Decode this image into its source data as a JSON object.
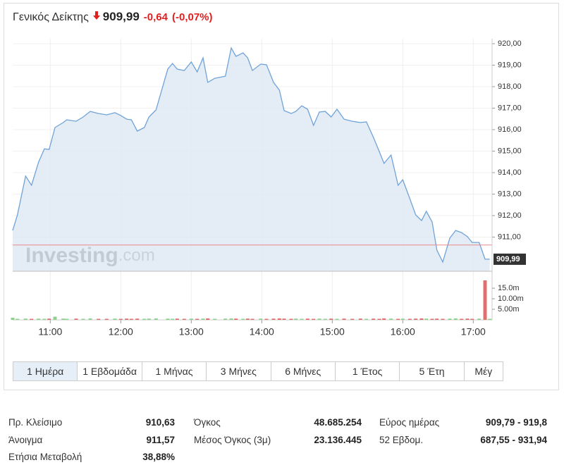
{
  "header": {
    "name": "Γενικός Δείκτης",
    "price": "909,99",
    "change": "-0,64",
    "change_pct": "(-0,07%)"
  },
  "chart_data": {
    "type": "line",
    "x": [
      "10:28",
      "10:32",
      "10:39",
      "10:44",
      "10:50",
      "10:55",
      "10:59",
      "11:04",
      "11:11",
      "11:14",
      "11:22",
      "11:28",
      "11:34",
      "11:41",
      "11:48",
      "11:55",
      "12:00",
      "12:05",
      "12:09",
      "12:14",
      "12:20",
      "12:24",
      "12:30",
      "12:40",
      "12:44",
      "12:48",
      "12:54",
      "13:00",
      "13:05",
      "13:10",
      "13:14",
      "13:20",
      "13:29",
      "13:34",
      "13:38",
      "13:44",
      "13:48",
      "13:52",
      "13:59",
      "14:04",
      "14:10",
      "14:15",
      "14:19",
      "14:25",
      "14:29",
      "14:34",
      "14:39",
      "14:44",
      "14:49",
      "14:54",
      "14:59",
      "15:04",
      "15:10",
      "15:17",
      "15:24",
      "15:29",
      "15:35",
      "15:40",
      "15:44",
      "15:50",
      "15:56",
      "16:00",
      "16:06",
      "16:11",
      "16:16",
      "16:20",
      "16:25",
      "16:29",
      "16:34",
      "16:40",
      "16:45",
      "16:50",
      "16:55",
      "16:59",
      "17:05",
      "17:10",
      "17:14"
    ],
    "values": [
      911.31,
      912.03,
      913.84,
      913.41,
      914.49,
      915.11,
      915.08,
      916.1,
      916.33,
      916.46,
      916.39,
      916.59,
      916.85,
      916.75,
      916.69,
      916.79,
      916.66,
      916.49,
      916.46,
      915.93,
      916.1,
      916.59,
      916.92,
      918.82,
      919.08,
      918.82,
      918.75,
      919.15,
      918.69,
      919.34,
      918.2,
      918.39,
      918.49,
      919.8,
      919.41,
      919.57,
      919.34,
      918.75,
      919.05,
      919.02,
      918.2,
      917.84,
      916.89,
      916.75,
      916.85,
      917.11,
      916.95,
      916.2,
      916.82,
      916.85,
      916.59,
      916.95,
      916.49,
      916.39,
      916.33,
      916.36,
      915.64,
      914.98,
      914.43,
      914.82,
      913.41,
      913.67,
      912.79,
      912.03,
      911.77,
      912.2,
      911.7,
      910.39,
      909.84,
      910.95,
      911.31,
      911.21,
      911.02,
      910.75,
      910.75,
      909.97,
      909.97
    ],
    "color": "#6fa3d8",
    "fill": "#dde8f4",
    "xlim": [
      "10:28",
      "17:16"
    ],
    "xticks": [
      "11:00",
      "12:00",
      "13:00",
      "14:00",
      "15:00",
      "16:00",
      "17:00"
    ],
    "ylim": [
      909.41,
      920.23
    ],
    "yticks": [
      {
        "value": 920,
        "label": "920,00"
      },
      {
        "value": 919,
        "label": "919,00"
      },
      {
        "value": 918,
        "label": "918,00"
      },
      {
        "value": 917,
        "label": "917,00"
      },
      {
        "value": 916,
        "label": "916,00"
      },
      {
        "value": 915,
        "label": "915,00"
      },
      {
        "value": 914,
        "label": "914,00"
      },
      {
        "value": 913,
        "label": "913,00"
      },
      {
        "value": 912,
        "label": "912,00"
      },
      {
        "value": 911,
        "label": "911,00"
      }
    ],
    "grid": true,
    "reference_line": 910.63,
    "reference_color": "#e88a8a",
    "last_value_label": "909,99",
    "watermark": [
      "Investing",
      ".com"
    ],
    "volume": {
      "values": [
        1.0,
        0.5,
        0.6,
        0.5,
        0.6,
        0.5,
        0.6,
        1.5,
        0.6,
        0.5,
        0.6,
        0.5,
        0.7,
        0.5,
        0.5,
        0.6,
        0.5,
        0.6,
        0.5,
        0.6,
        0.5,
        0.6,
        0.7,
        0.6,
        0.5,
        0.6,
        0.5,
        0.6,
        0.5,
        0.6,
        0.7,
        0.5,
        0.6,
        0.7,
        0.6,
        0.5,
        0.6,
        0.5,
        0.6,
        0.5,
        0.6,
        0.7,
        0.6,
        0.5,
        0.6,
        0.5,
        0.6,
        0.5,
        0.6,
        0.5,
        0.6,
        0.5,
        0.6,
        0.5,
        0.6,
        0.5,
        0.6,
        0.5,
        0.7,
        0.6,
        0.5,
        0.6,
        0.5,
        0.6,
        0.7,
        0.6,
        0.5,
        0.6,
        0.5,
        0.6,
        0.7,
        0.5,
        0.6,
        0.5,
        0.6,
        18.7,
        0.5
      ],
      "ylim": [
        0,
        20.7
      ],
      "yticks": [
        {
          "value": 15,
          "label": "15.0m"
        },
        {
          "value": 10,
          "label": "10.00m"
        },
        {
          "value": 5,
          "label": "5.00m"
        }
      ],
      "up_color": "#8fd18f",
      "down_color": "#e07070"
    }
  },
  "tabs": [
    "1 Ημέρα",
    "1 Εβδομάδα",
    "1 Μήνας",
    "3 Μήνες",
    "6 Μήνες",
    "1 Έτος",
    "5 Έτη",
    "Μέγ"
  ],
  "active_tab": 0,
  "stats": [
    {
      "rows": [
        {
          "label": "Πρ. Κλείσιμο",
          "value": "910,63"
        },
        {
          "label": "Άνοιγμα",
          "value": "911,57"
        },
        {
          "label": "Ετήσια Μεταβολή",
          "value": "38,88%"
        }
      ]
    },
    {
      "rows": [
        {
          "label": "Όγκος",
          "value": "48.685.254"
        },
        {
          "label": "Μέσος Όγκος (3μ)",
          "value": "23.136.445"
        }
      ]
    },
    {
      "rows": [
        {
          "label": "Εύρος ημέρας",
          "value": "909,79 - 919,8"
        },
        {
          "label": "52 Εβδομ.",
          "value": "687,55 - 931,94"
        }
      ]
    }
  ]
}
